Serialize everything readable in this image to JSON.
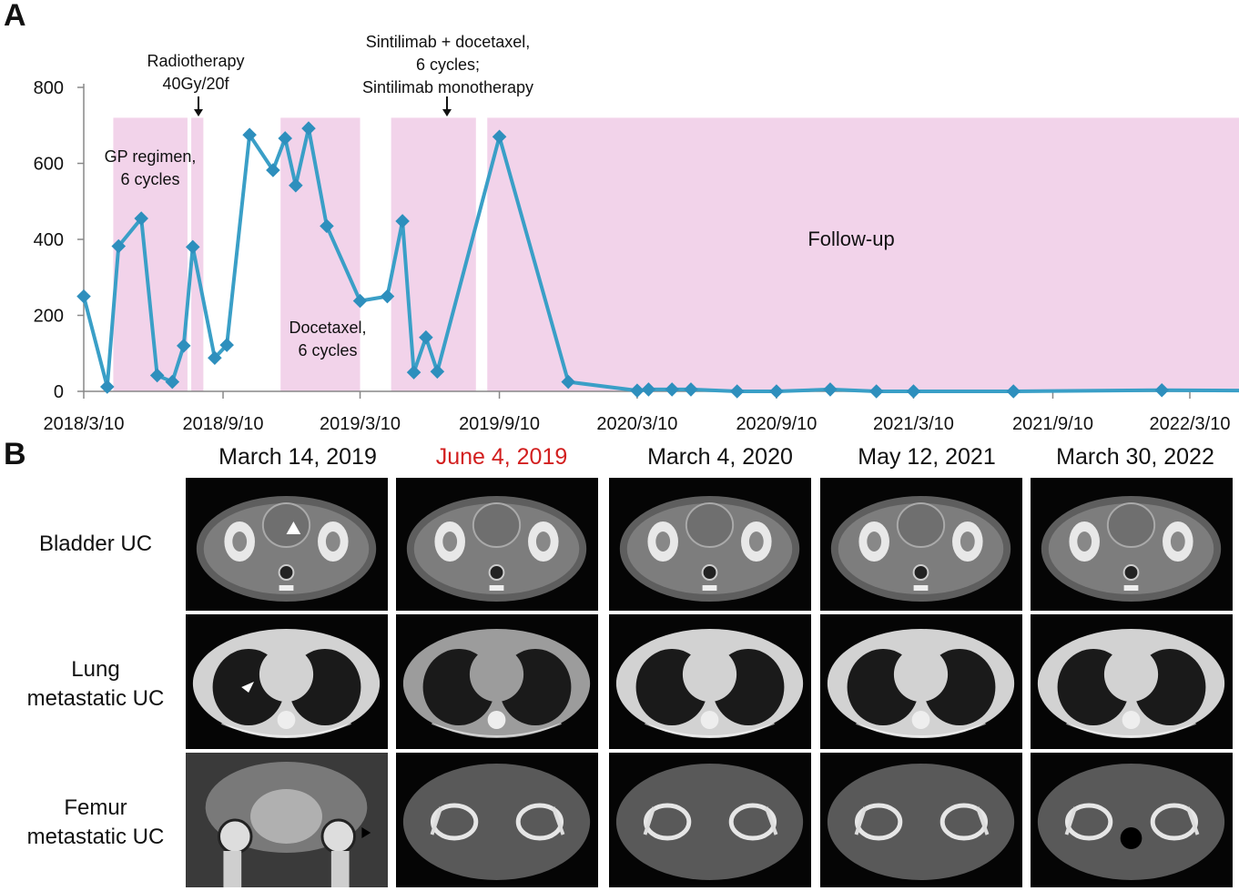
{
  "panels": {
    "a": "A",
    "b": "B"
  },
  "chart_data": {
    "type": "line",
    "x_ticks": [
      "2018/3/10",
      "2018/9/10",
      "2019/3/10",
      "2019/9/10",
      "2020/3/10",
      "2020/9/10",
      "2021/3/10",
      "2021/9/10",
      "2022/3/10"
    ],
    "y_ticks": [
      "0",
      "200",
      "400",
      "600",
      "800"
    ],
    "ylim": [
      0,
      800
    ],
    "series": [
      {
        "x": [
          "2018/3/10",
          "2018/4/10",
          "2018/4/25",
          "2018/5/25",
          "2018/6/15",
          "2018/7/5",
          "2018/7/20",
          "2018/8/1",
          "2018/8/30",
          "2018/9/15",
          "2018/10/15",
          "2018/11/15",
          "2018/12/1",
          "2018/12/15",
          "2019/1/1",
          "2019/1/25",
          "2019/3/10",
          "2019/4/15",
          "2019/5/5",
          "2019/5/20",
          "2019/6/5",
          "2019/6/20",
          "2019/9/10",
          "2019/12/10",
          "2020/3/10",
          "2020/3/25",
          "2020/4/25",
          "2020/5/20",
          "2020/7/20",
          "2020/9/10",
          "2020/11/20",
          "2021/1/20",
          "2021/3/10",
          "2021/7/20",
          "2022/2/1",
          "2022/6/10"
        ],
        "y": [
          250,
          12,
          382,
          455,
          42,
          25,
          120,
          380,
          88,
          122,
          675,
          582,
          666,
          542,
          692,
          435,
          238,
          250,
          448,
          50,
          142,
          52,
          670,
          25,
          2,
          5,
          5,
          5,
          0,
          0,
          5,
          0,
          0,
          0,
          3,
          2
        ]
      }
    ],
    "color": "#3a9fc7",
    "marker_color": "#2e8fbd",
    "shade_color": "#f2d3ea",
    "shaded_periods": [
      {
        "start": "2018/4/18",
        "end": "2018/7/25"
      },
      {
        "start": "2018/7/30",
        "end": "2018/8/15"
      },
      {
        "start": "2018/11/25",
        "end": "2019/3/10"
      },
      {
        "start": "2019/4/20",
        "end": "2019/8/10"
      },
      {
        "start": "2019/8/25",
        "end": "2022/6/10"
      }
    ],
    "annotations": {
      "gp": [
        "GP regimen,",
        "6 cycles"
      ],
      "radio": [
        "Radiotherapy",
        "40Gy/20f"
      ],
      "docetaxel": [
        "Docetaxel,",
        "6 cycles"
      ],
      "sintilimab": [
        "Sintilimab  + docetaxel,",
        "6 cycles;",
        "Sintilimab  monotherapy"
      ],
      "followup": "Follow-up"
    }
  },
  "panel_b": {
    "dates": [
      "March 14, 2019",
      "June 4, 2019",
      "March 4, 2020",
      "May 12, 2021",
      "March 30, 2022"
    ],
    "highlight_color": "#d21f1f",
    "rows": [
      {
        "label": [
          "Bladder UC"
        ]
      },
      {
        "label": [
          "Lung",
          "metastatic UC"
        ]
      },
      {
        "label": [
          "Femur",
          "metastatic UC"
        ]
      }
    ]
  }
}
